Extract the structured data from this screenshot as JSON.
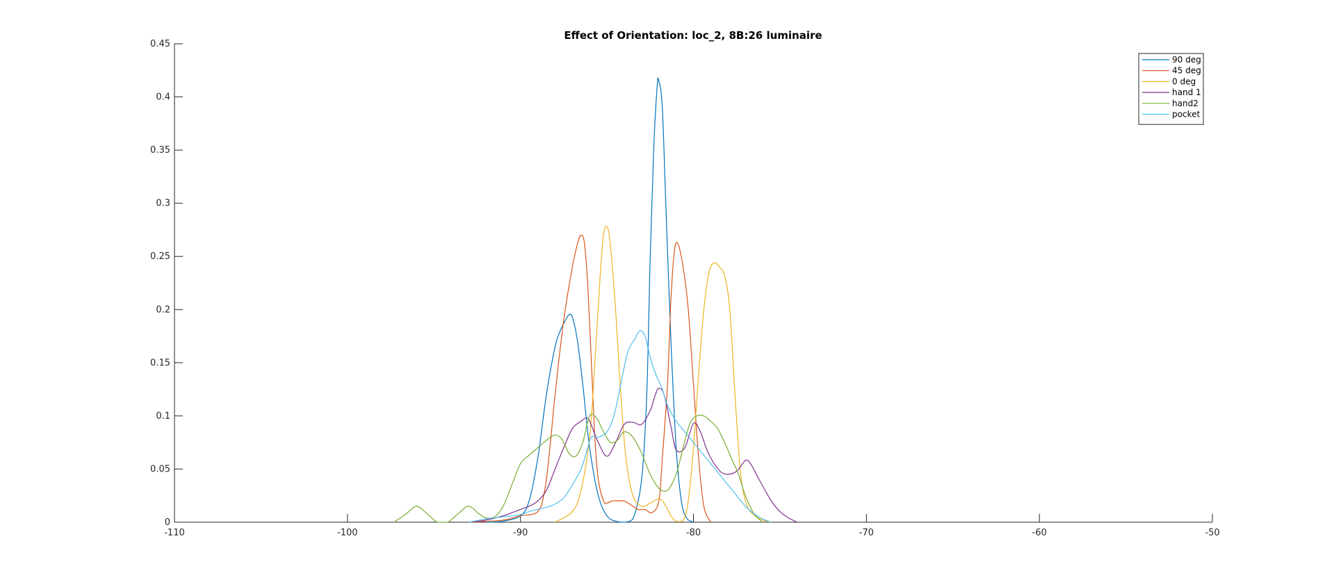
{
  "chart_data": {
    "type": "line",
    "title": "Effect of Orientation: loc_2, 8B:26 luminaire",
    "xlabel": "",
    "ylabel": "",
    "xlim": [
      -110,
      -50
    ],
    "ylim": [
      0,
      0.45
    ],
    "x_ticks": [
      -110,
      -100,
      -90,
      -80,
      -70,
      -60,
      -50
    ],
    "x_tick_labels": [
      "-110",
      "-100",
      "-90",
      "-80",
      "-70",
      "-60",
      "-50"
    ],
    "y_ticks": [
      0,
      0.05,
      0.1,
      0.15,
      0.2,
      0.25,
      0.3,
      0.35,
      0.4,
      0.45
    ],
    "y_tick_labels": [
      "0",
      "0.05",
      "0.1",
      "0.15",
      "0.2",
      "0.25",
      "0.3",
      "0.35",
      "0.4",
      "0.45"
    ],
    "grid": false,
    "legend_position": "top-right",
    "series": [
      {
        "name": "90 deg",
        "color": "#0072BD",
        "x": [
          -92,
          -91,
          -90,
          -89.5,
          -89,
          -88.5,
          -88,
          -87.7,
          -87.4,
          -87.2,
          -87,
          -86.7,
          -86.4,
          -86,
          -85.5,
          -85,
          -84.5,
          -84,
          -83.5,
          -83,
          -82.7,
          -82.5,
          -82.3,
          -82.1,
          -82,
          -81.8,
          -81.6,
          -81.3,
          -81,
          -80.7,
          -80.4,
          -80
        ],
        "y": [
          0,
          0.001,
          0.006,
          0.02,
          0.06,
          0.12,
          0.165,
          0.18,
          0.19,
          0.195,
          0.193,
          0.17,
          0.13,
          0.07,
          0.025,
          0.006,
          0.001,
          0,
          0.003,
          0.04,
          0.12,
          0.25,
          0.35,
          0.41,
          0.415,
          0.39,
          0.3,
          0.17,
          0.07,
          0.02,
          0.004,
          0
        ]
      },
      {
        "name": "45 deg",
        "color": "#D95319",
        "x": [
          -93,
          -91,
          -90,
          -89,
          -88.6,
          -88.3,
          -88,
          -87.5,
          -87,
          -86.7,
          -86.5,
          -86.3,
          -86.1,
          -85.9,
          -85.7,
          -85.5,
          -85.2,
          -85,
          -84.7,
          -84.3,
          -84,
          -83.6,
          -83.2,
          -82.8,
          -82.4,
          -82,
          -81.8,
          -81.5,
          -81.3,
          -81.1,
          -80.9,
          -80.6,
          -80.3,
          -80,
          -79.7,
          -79.4,
          -79
        ],
        "y": [
          0,
          0.002,
          0.006,
          0.01,
          0.03,
          0.07,
          0.12,
          0.19,
          0.24,
          0.262,
          0.27,
          0.262,
          0.22,
          0.15,
          0.08,
          0.04,
          0.02,
          0.018,
          0.02,
          0.02,
          0.02,
          0.016,
          0.012,
          0.012,
          0.009,
          0.02,
          0.06,
          0.13,
          0.21,
          0.255,
          0.262,
          0.24,
          0.2,
          0.13,
          0.06,
          0.015,
          0
        ]
      },
      {
        "name": "0 deg",
        "color": "#EDB120",
        "x": [
          -88,
          -87,
          -86.5,
          -86,
          -85.7,
          -85.4,
          -85.2,
          -85,
          -84.8,
          -84.5,
          -84.2,
          -83.9,
          -83.5,
          -83,
          -82.5,
          -82,
          -81.7,
          -81.3,
          -81,
          -80.6,
          -80.3,
          -80,
          -79.7,
          -79.4,
          -79.1,
          -78.8,
          -78.5,
          -78.2,
          -77.9,
          -77.6,
          -77.3,
          -77,
          -76.6,
          -76,
          -75.5
        ],
        "y": [
          0,
          0.01,
          0.03,
          0.08,
          0.15,
          0.23,
          0.27,
          0.278,
          0.26,
          0.2,
          0.12,
          0.06,
          0.025,
          0.015,
          0.018,
          0.022,
          0.018,
          0.006,
          0.001,
          0.002,
          0.02,
          0.07,
          0.14,
          0.2,
          0.235,
          0.244,
          0.24,
          0.232,
          0.2,
          0.12,
          0.05,
          0.02,
          0.008,
          0.002,
          0
        ]
      },
      {
        "name": "hand 1",
        "color": "#7E2F8E",
        "x": [
          -93,
          -92,
          -91,
          -90,
          -89.5,
          -89,
          -88.5,
          -88,
          -87.5,
          -87,
          -86.5,
          -86.2,
          -86,
          -85.5,
          -85,
          -84.5,
          -84,
          -83.5,
          -83,
          -82.5,
          -82.2,
          -82,
          -81.7,
          -81.3,
          -81,
          -80.5,
          -80,
          -79.6,
          -79.2,
          -78.8,
          -78.4,
          -78,
          -77.5,
          -77,
          -76.7,
          -76.2,
          -75.5,
          -75,
          -74.5,
          -74
        ],
        "y": [
          0,
          0.002,
          0.006,
          0.012,
          0.015,
          0.02,
          0.03,
          0.05,
          0.07,
          0.088,
          0.095,
          0.098,
          0.095,
          0.075,
          0.062,
          0.075,
          0.092,
          0.094,
          0.092,
          0.105,
          0.12,
          0.126,
          0.12,
          0.09,
          0.068,
          0.07,
          0.093,
          0.085,
          0.067,
          0.055,
          0.047,
          0.045,
          0.048,
          0.058,
          0.055,
          0.04,
          0.02,
          0.01,
          0.004,
          0
        ]
      },
      {
        "name": "hand2",
        "color": "#77AC30",
        "x": [
          -97.3,
          -96.6,
          -96,
          -95.4,
          -94.8,
          -94.2,
          -93.6,
          -93,
          -92.4,
          -92,
          -91.5,
          -91,
          -90.5,
          -90,
          -89.5,
          -89,
          -88.5,
          -88,
          -87.6,
          -87.2,
          -86.8,
          -86.4,
          -86,
          -85.6,
          -85.2,
          -84.8,
          -84.4,
          -84,
          -83.5,
          -83,
          -82.5,
          -82,
          -81.5,
          -81,
          -80.6,
          -80.2,
          -79.8,
          -79.4,
          -79,
          -78.6,
          -78.2,
          -77.8,
          -77.4,
          -77,
          -76.5,
          -76
        ],
        "y": [
          0,
          0.008,
          0.015,
          0.008,
          0,
          0,
          0.008,
          0.015,
          0.008,
          0.004,
          0.005,
          0.015,
          0.035,
          0.055,
          0.063,
          0.07,
          0.077,
          0.082,
          0.078,
          0.065,
          0.062,
          0.075,
          0.1,
          0.098,
          0.085,
          0.075,
          0.077,
          0.085,
          0.08,
          0.065,
          0.045,
          0.032,
          0.03,
          0.045,
          0.07,
          0.093,
          0.1,
          0.1,
          0.095,
          0.088,
          0.075,
          0.06,
          0.045,
          0.025,
          0.008,
          0
        ]
      },
      {
        "name": "pocket",
        "color": "#4DBEEE",
        "x": [
          -93,
          -92,
          -91,
          -90,
          -89.5,
          -89,
          -88.5,
          -88,
          -87.5,
          -87,
          -86.5,
          -86.2,
          -85.9,
          -85.5,
          -85,
          -84.6,
          -84.2,
          -83.8,
          -83.4,
          -83.1,
          -82.8,
          -82.5,
          -82.2,
          -81.8,
          -81.5,
          -81,
          -80.5,
          -80,
          -79.5,
          -79,
          -78.5,
          -78,
          -77.5,
          -77,
          -76.5,
          -76,
          -75.5
        ],
        "y": [
          0,
          0.003,
          0.005,
          0.007,
          0.01,
          0.012,
          0.014,
          0.017,
          0.023,
          0.035,
          0.05,
          0.065,
          0.08,
          0.08,
          0.085,
          0.1,
          0.13,
          0.16,
          0.172,
          0.18,
          0.175,
          0.155,
          0.14,
          0.125,
          0.11,
          0.095,
          0.085,
          0.075,
          0.065,
          0.055,
          0.045,
          0.035,
          0.025,
          0.015,
          0.008,
          0.003,
          0
        ]
      }
    ]
  }
}
